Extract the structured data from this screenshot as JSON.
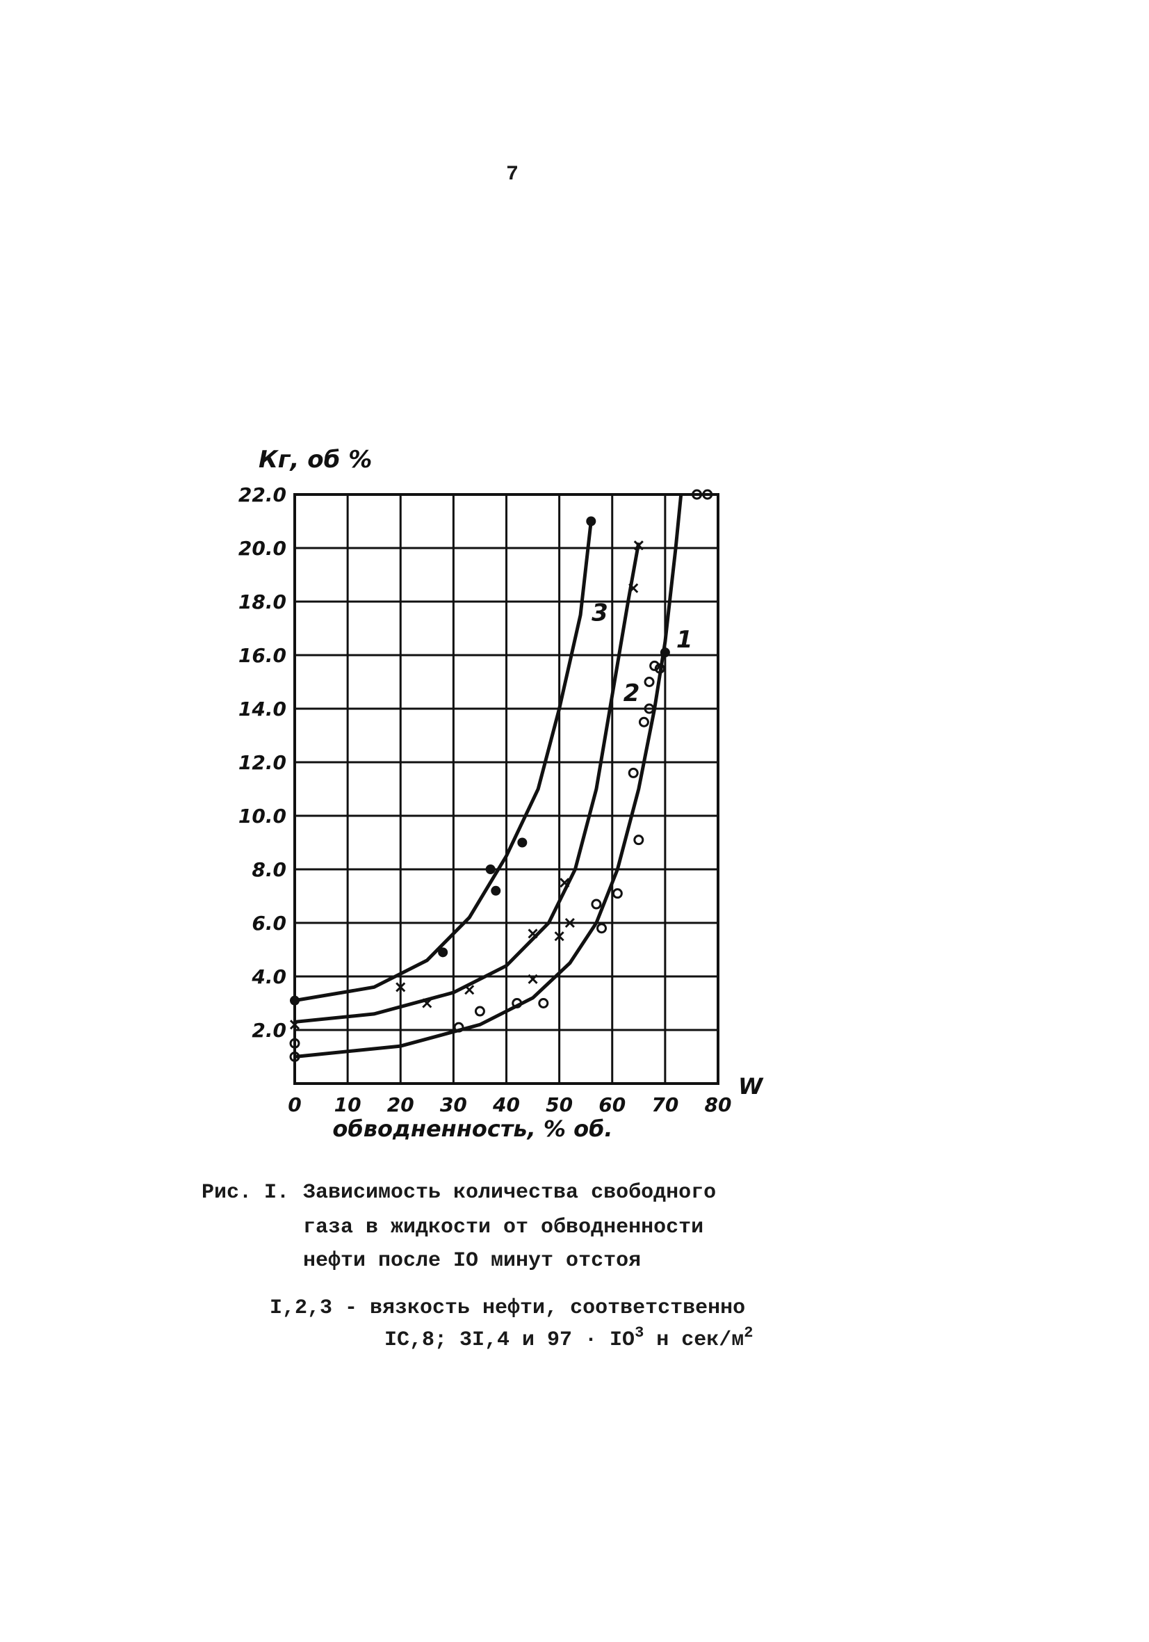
{
  "page_number": "7",
  "chart_data": {
    "type": "scatter",
    "y_label": "Кг, об %",
    "x_label": "обводненность, % об.",
    "x_symbol": "W",
    "xlim": [
      0,
      80
    ],
    "ylim": [
      0,
      22
    ],
    "xticks": [
      0,
      10,
      20,
      30,
      40,
      50,
      60,
      70,
      80
    ],
    "yticks": [
      {
        "value": 2,
        "label": "2.0"
      },
      {
        "value": 4,
        "label": "4.0"
      },
      {
        "value": 6,
        "label": "6.0"
      },
      {
        "value": 8,
        "label": "8.0"
      },
      {
        "value": 10,
        "label": "10.0"
      },
      {
        "value": 12,
        "label": "12.0"
      },
      {
        "value": 14,
        "label": "14.0"
      },
      {
        "value": 16,
        "label": "16.0"
      },
      {
        "value": 18,
        "label": "18.0"
      },
      {
        "value": 20,
        "label": "20.0"
      },
      {
        "value": 22,
        "label": "22.0"
      }
    ],
    "grid": true,
    "series": [
      {
        "name": "1",
        "marker": "circle",
        "color": "#111111",
        "x": [
          0,
          0,
          31,
          35,
          42,
          47,
          57,
          58,
          61,
          64,
          65,
          66,
          67,
          67,
          68,
          69,
          76,
          78
        ],
        "values": [
          1.5,
          1.0,
          2.1,
          2.7,
          3.0,
          3.0,
          6.7,
          5.8,
          7.1,
          11.6,
          9.1,
          13.5,
          14.0,
          15.0,
          15.6,
          15.5,
          22.0,
          22.0
        ],
        "curve_x": [
          0,
          20,
          35,
          45,
          52,
          57,
          61,
          65,
          68,
          70,
          72,
          73
        ],
        "curve_values": [
          1.0,
          1.4,
          2.2,
          3.2,
          4.5,
          6.0,
          8.0,
          11.0,
          14.0,
          16.5,
          20.0,
          22.0
        ]
      },
      {
        "name": "2",
        "marker": "cross",
        "color": "#111111",
        "x": [
          0,
          20,
          25,
          33,
          45,
          45,
          50,
          51,
          52,
          64,
          65
        ],
        "values": [
          2.2,
          3.6,
          3.0,
          3.5,
          5.6,
          3.9,
          5.5,
          7.5,
          6.0,
          18.5,
          20.1
        ],
        "curve_x": [
          0,
          15,
          30,
          40,
          48,
          53,
          57,
          60,
          63,
          65
        ],
        "curve_values": [
          2.3,
          2.6,
          3.4,
          4.4,
          6.0,
          8.0,
          11.0,
          14.5,
          18.0,
          20.2
        ]
      },
      {
        "name": "3",
        "marker": "dot",
        "color": "#111111",
        "x": [
          0,
          28,
          37,
          38,
          43,
          56,
          70
        ],
        "values": [
          3.1,
          4.9,
          8.0,
          7.2,
          9.0,
          21.0,
          16.1
        ],
        "curve_x": [
          0,
          15,
          25,
          33,
          40,
          46,
          50,
          54,
          56
        ],
        "curve_values": [
          3.1,
          3.6,
          4.6,
          6.2,
          8.5,
          11.0,
          14.0,
          17.5,
          21.0
        ]
      }
    ]
  },
  "caption": {
    "label": "Рис. I.",
    "lines": [
      "Зависимость количества свободного",
      "газа в жидкости от обводненности",
      "нефти после IO минут отстоя"
    ]
  },
  "note": {
    "line1": "I,2,3 - вязкость нефти, соответственно",
    "line2": "IC,8; 3I,4 и 97 · IO",
    "exp1": "3",
    "unit": " н сек/м",
    "exp2": "2"
  }
}
